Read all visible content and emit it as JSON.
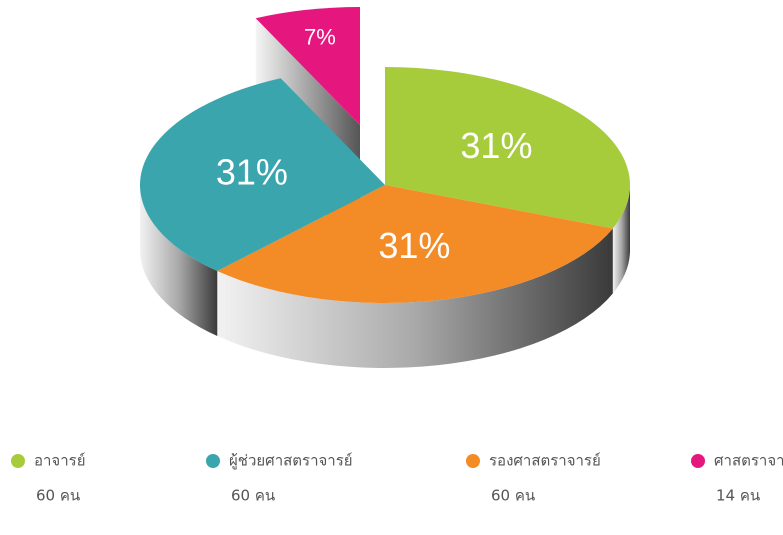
{
  "chart_data": {
    "type": "pie3d",
    "categories": [
      "อาจารย์",
      "รองศาสตราจารย์",
      "ผู้ช่วยศาสตราจารย์",
      "ศาสตราจารย์"
    ],
    "values": [
      31,
      31,
      31,
      7
    ],
    "value_labels": [
      "31%",
      "31%",
      "31%",
      "7%"
    ],
    "colors": [
      "#a6cc3c",
      "#f38b26",
      "#3ba5ae",
      "#e5177f"
    ],
    "legend_sublabels": [
      "60 คน",
      "60 คน",
      "60 คน",
      "14 คน"
    ],
    "legend_order": [
      0,
      2,
      1,
      3
    ],
    "exploded": [
      false,
      false,
      false,
      true
    ]
  }
}
